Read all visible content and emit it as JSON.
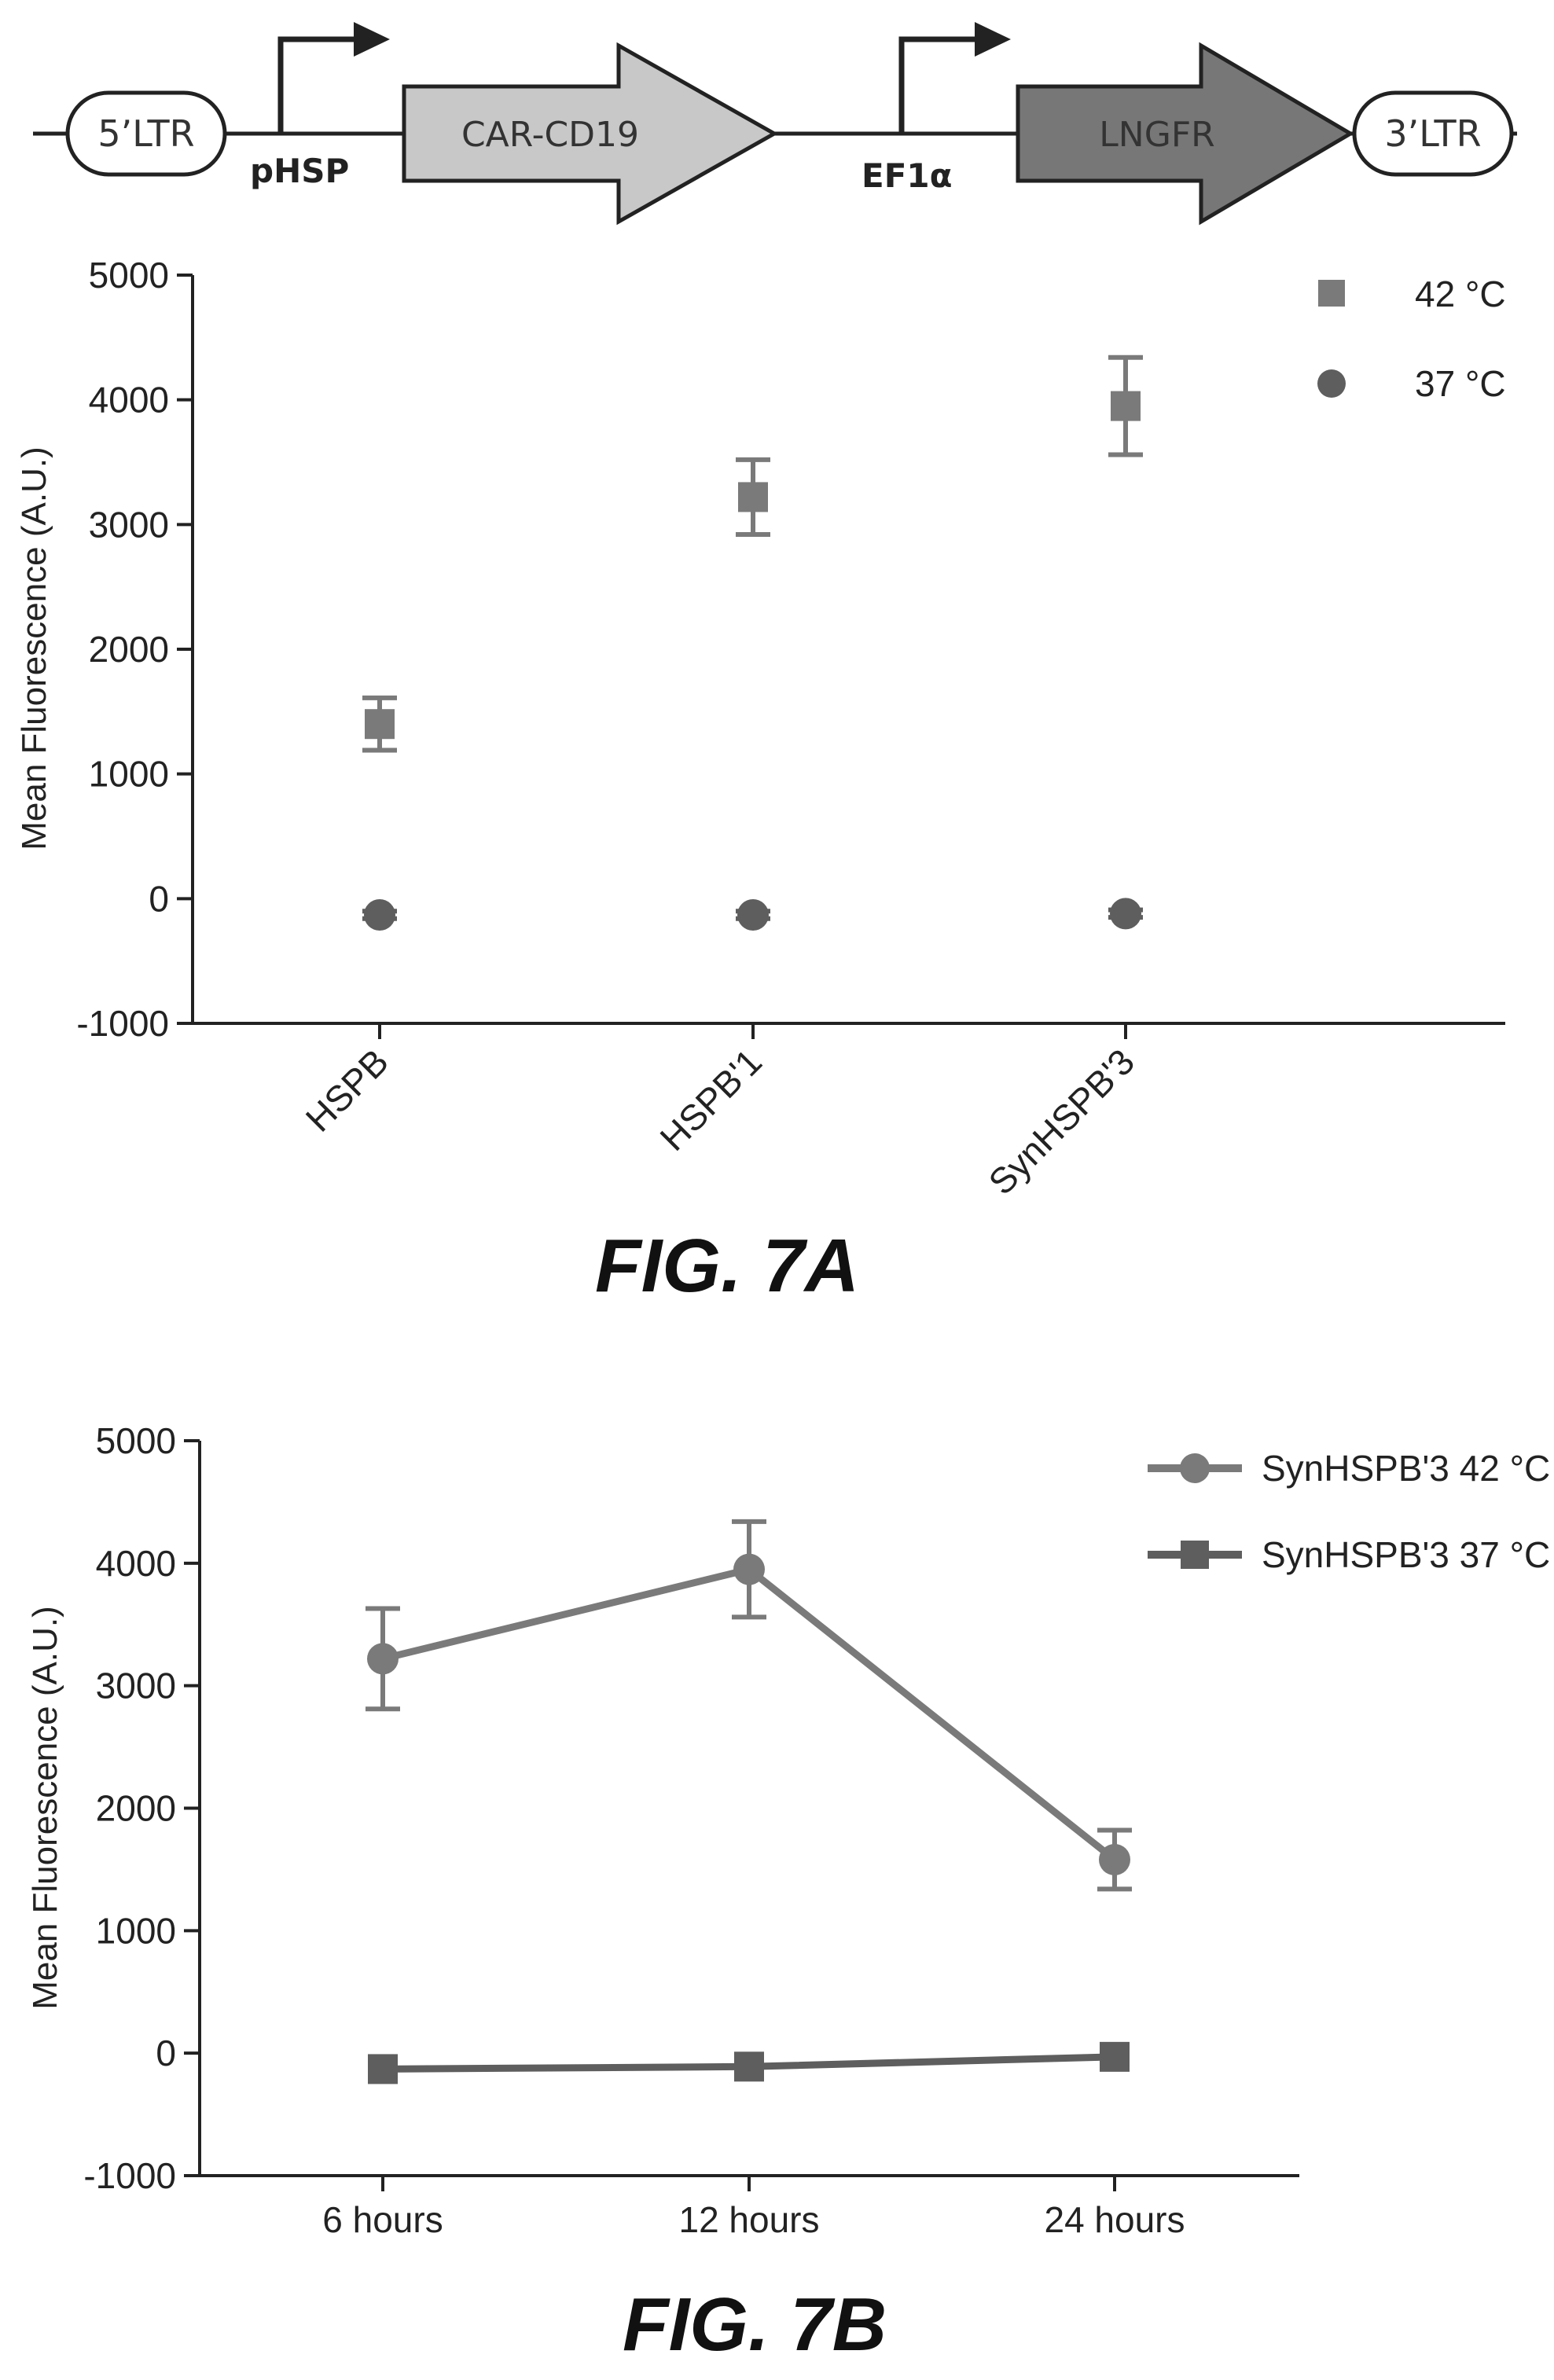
{
  "construct": {
    "ltr5": "5’LTR",
    "promoter1": "pHSP",
    "gene1": "CAR-CD19",
    "promoter2": "EF1α",
    "gene2": "LNGFR",
    "ltr3": "3’LTR"
  },
  "colors": {
    "ink": "#222222",
    "series_light": "#7a7a7a",
    "series_dark": "#5e5e5e",
    "car_fill": "#c8c8c8",
    "lngfr_fill": "#777777"
  },
  "fig_7a": {
    "caption": "FIG. 7A",
    "legend": [
      "42 °C",
      "37 °C"
    ],
    "ylabel": "Mean Fluorescence (A.U.)",
    "ytick_labels": [
      "5000",
      "4000",
      "3000",
      "2000",
      "1000",
      "0",
      "-1000"
    ],
    "xtick_labels": [
      "HSPB",
      "HSPB'1",
      "SynHSPB'3"
    ]
  },
  "fig_7b": {
    "caption": "FIG. 7B",
    "legend": [
      "SynHSPB'3 42 °C",
      "SynHSPB'3 37 °C"
    ],
    "ylabel": "Mean Fluorescence (A.U.)",
    "ytick_labels": [
      "5000",
      "4000",
      "3000",
      "2000",
      "1000",
      "0",
      "-1000"
    ],
    "xtick_labels": [
      "6 hours",
      "12 hours",
      "24 hours"
    ]
  },
  "chart_data": [
    {
      "type": "scatter",
      "categories": [
        "HSPB",
        "HSPB'1",
        "SynHSPB'3"
      ],
      "ylabel": "Mean Fluorescence (A.U.)",
      "ylim": [
        -1000,
        5000
      ],
      "legend_position": "top-right",
      "series": [
        {
          "name": "42 °C",
          "marker": "square",
          "values": [
            1400,
            3220,
            3950
          ],
          "errors": [
            210,
            300,
            390
          ]
        },
        {
          "name": "37 °C",
          "marker": "circle",
          "values": [
            -130,
            -130,
            -120
          ],
          "errors": [
            30,
            30,
            30
          ]
        }
      ]
    },
    {
      "type": "line",
      "categories": [
        "6 hours",
        "12 hours",
        "24 hours"
      ],
      "ylabel": "Mean Fluorescence (A.U.)",
      "ylim": [
        -1000,
        5000
      ],
      "legend_position": "top-right",
      "series": [
        {
          "name": "SynHSPB'3 42 °C",
          "marker": "circle",
          "values": [
            3220,
            3950,
            1580
          ],
          "errors": [
            410,
            390,
            240
          ]
        },
        {
          "name": "SynHSPB'3 37 °C",
          "marker": "square",
          "values": [
            -130,
            -110,
            -30
          ],
          "errors": [
            0,
            0,
            0
          ]
        }
      ]
    }
  ]
}
